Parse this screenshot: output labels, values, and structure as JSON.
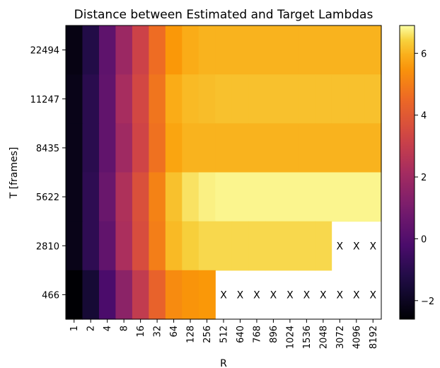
{
  "chart_data": {
    "type": "heatmap",
    "title": "Distance between Estimated and Target Lambdas",
    "xlabel": "R",
    "ylabel": "T [frames]",
    "x_categories": [
      "1",
      "2",
      "4",
      "8",
      "16",
      "32",
      "64",
      "128",
      "256",
      "512",
      "640",
      "768",
      "896",
      "1024",
      "1536",
      "2048",
      "3072",
      "4096",
      "8192"
    ],
    "y_categories": [
      "22494",
      "11247",
      "8435",
      "5622",
      "2810",
      "466"
    ],
    "values": [
      [
        -2.3,
        -1.2,
        0.3,
        1.9,
        3.2,
        4.6,
        5.6,
        5.9,
        6.0,
        6.0,
        6.0,
        6.0,
        6.0,
        6.0,
        6.0,
        6.0,
        6.0,
        6.0,
        6.0
      ],
      [
        -2.2,
        -1.0,
        0.4,
        2.2,
        3.4,
        4.8,
        5.9,
        6.1,
        6.15,
        6.2,
        6.2,
        6.2,
        6.2,
        6.2,
        6.2,
        6.2,
        6.2,
        6.2,
        6.2
      ],
      [
        -2.2,
        -1.0,
        0.4,
        2.0,
        3.3,
        4.7,
        5.8,
        6.0,
        6.0,
        6.0,
        6.0,
        6.0,
        6.0,
        6.0,
        6.0,
        6.0,
        6.0,
        6.0,
        6.0
      ],
      [
        -2.2,
        -0.9,
        0.6,
        2.4,
        3.7,
        5.1,
        6.2,
        6.6,
        6.75,
        6.8,
        6.8,
        6.8,
        6.8,
        6.8,
        6.8,
        6.8,
        6.8,
        6.8,
        6.8
      ],
      [
        -2.2,
        -0.9,
        0.4,
        2.3,
        3.6,
        5.0,
        6.1,
        6.4,
        6.5,
        6.5,
        6.5,
        6.5,
        6.5,
        6.5,
        6.5,
        6.5,
        null,
        null,
        null
      ],
      [
        -2.6,
        -1.6,
        -0.2,
        1.5,
        2.9,
        4.3,
        5.3,
        5.5,
        5.6,
        null,
        null,
        null,
        null,
        null,
        null,
        null,
        null,
        null,
        null
      ]
    ],
    "missing_marker": "X",
    "colormap": "inferno",
    "colorbar": {
      "range": [
        -2.6,
        6.9
      ],
      "ticks": [
        "−2",
        "0",
        "2",
        "4",
        "6"
      ],
      "tick_values": [
        -2,
        0,
        2,
        4,
        6
      ]
    },
    "grid": false
  }
}
